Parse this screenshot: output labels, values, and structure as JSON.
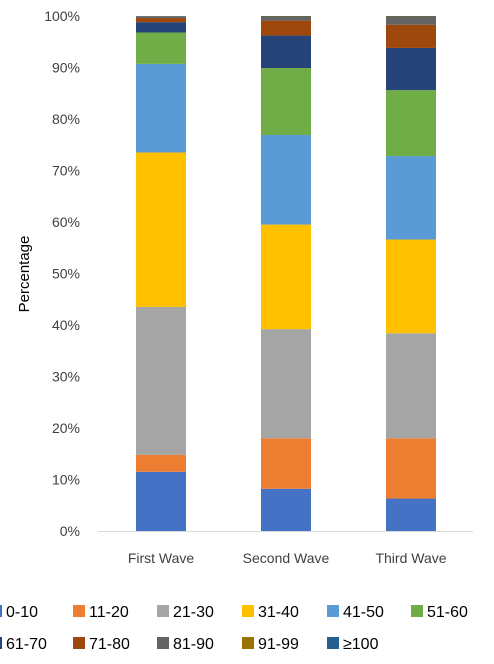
{
  "chart_data": {
    "type": "bar",
    "stacked": true,
    "percent": true,
    "categories": [
      "First Wave",
      "Second Wave",
      "Third Wave"
    ],
    "ylabel": "Percentage",
    "xlabel": "",
    "title": "",
    "ylim": [
      0,
      100
    ],
    "yticks": [
      "0%",
      "10%",
      "20%",
      "30%",
      "40%",
      "50%",
      "60%",
      "70%",
      "80%",
      "90%",
      "100%"
    ],
    "grid": false,
    "legend": "bottom",
    "series": [
      {
        "name": "0-10",
        "color": "#4472C4",
        "values": [
          11.5,
          8.2,
          6.3
        ]
      },
      {
        "name": "11-20",
        "color": "#ED7D31",
        "values": [
          3.3,
          9.8,
          11.7
        ]
      },
      {
        "name": "21-30",
        "color": "#A5A5A5",
        "values": [
          28.7,
          21.2,
          20.4
        ]
      },
      {
        "name": "31-40",
        "color": "#FFC000",
        "values": [
          30.0,
          20.3,
          18.2
        ]
      },
      {
        "name": "41-50",
        "color": "#5B9BD5",
        "values": [
          17.2,
          17.4,
          16.2
        ]
      },
      {
        "name": "51-60",
        "color": "#70AD47",
        "values": [
          6.1,
          13.0,
          12.8
        ]
      },
      {
        "name": "61-70",
        "color": "#264478",
        "values": [
          2.0,
          6.3,
          8.2
        ]
      },
      {
        "name": "71-80",
        "color": "#9E480E",
        "values": [
          0.8,
          2.9,
          4.5
        ]
      },
      {
        "name": "81-90",
        "color": "#636363",
        "values": [
          0.3,
          0.7,
          1.5
        ]
      },
      {
        "name": "91-99",
        "color": "#997300",
        "values": [
          0.05,
          0.1,
          0.1
        ]
      },
      {
        "name": "≥100",
        "color": "#255E91",
        "values": [
          0.05,
          0.1,
          0.1
        ]
      }
    ]
  }
}
